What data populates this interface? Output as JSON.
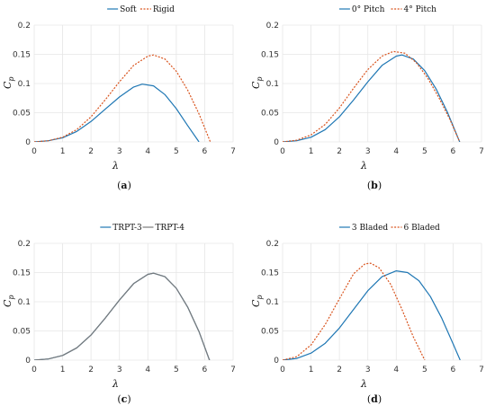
{
  "chart_data": [
    {
      "type": "line",
      "caption": "a",
      "xlabel": "λ",
      "ylabel_main": "C",
      "ylabel_sub": "p",
      "xlim": [
        0,
        7
      ],
      "ylim": [
        0,
        0.2
      ],
      "xticks": [
        "0",
        "1",
        "2",
        "3",
        "4",
        "5",
        "6",
        "7"
      ],
      "yticks": [
        "0",
        "0.05",
        "0.1",
        "0.15",
        "0.2"
      ],
      "grid": true,
      "legend": "top-center",
      "series": [
        {
          "name": "Soft",
          "color": "#1f77b4",
          "dash": "solid",
          "x": [
            0,
            0.5,
            1,
            1.5,
            2,
            2.5,
            3,
            3.5,
            3.8,
            4.2,
            4.6,
            5.0,
            5.4,
            5.8
          ],
          "y": [
            0,
            0.002,
            0.007,
            0.018,
            0.035,
            0.056,
            0.077,
            0.094,
            0.099,
            0.096,
            0.081,
            0.057,
            0.028,
            0.0
          ]
        },
        {
          "name": "Rigid",
          "color": "#d9541e",
          "dash": "dotted",
          "x": [
            0,
            0.5,
            1,
            1.5,
            2,
            2.5,
            3,
            3.5,
            4,
            4.2,
            4.6,
            5.0,
            5.4,
            5.8,
            6.2
          ],
          "y": [
            0,
            0.002,
            0.008,
            0.021,
            0.043,
            0.072,
            0.103,
            0.131,
            0.147,
            0.149,
            0.142,
            0.121,
            0.089,
            0.048,
            0.0
          ]
        }
      ]
    },
    {
      "type": "line",
      "caption": "b",
      "xlabel": "λ",
      "ylabel_main": "C",
      "ylabel_sub": "p",
      "xlim": [
        0,
        7
      ],
      "ylim": [
        0,
        0.2
      ],
      "xticks": [
        "0",
        "1",
        "2",
        "3",
        "4",
        "5",
        "6",
        "7"
      ],
      "yticks": [
        "0",
        "0.05",
        "0.1",
        "0.15",
        "0.2"
      ],
      "grid": true,
      "legend": "top-center",
      "series": [
        {
          "name": "0° Pitch",
          "color": "#1f77b4",
          "dash": "solid",
          "x": [
            0,
            0.5,
            1,
            1.5,
            2,
            2.5,
            3,
            3.5,
            4,
            4.2,
            4.6,
            5.0,
            5.4,
            5.8,
            6.25
          ],
          "y": [
            0,
            0.002,
            0.008,
            0.021,
            0.043,
            0.072,
            0.103,
            0.131,
            0.147,
            0.149,
            0.142,
            0.122,
            0.091,
            0.051,
            -0.002
          ]
        },
        {
          "name": "4° Pitch",
          "color": "#d9541e",
          "dash": "dotted",
          "x": [
            0,
            0.5,
            1,
            1.5,
            2,
            2.5,
            3,
            3.5,
            3.9,
            4.3,
            4.7,
            5.1,
            5.5,
            5.9,
            6.25
          ],
          "y": [
            0,
            0.003,
            0.012,
            0.03,
            0.058,
            0.092,
            0.124,
            0.147,
            0.155,
            0.152,
            0.136,
            0.11,
            0.076,
            0.037,
            -0.002
          ]
        }
      ]
    },
    {
      "type": "line",
      "caption": "c",
      "xlabel": "λ",
      "ylabel_main": "C",
      "ylabel_sub": "p",
      "xlim": [
        0,
        7
      ],
      "ylim": [
        0,
        0.2
      ],
      "xticks": [
        "0",
        "1",
        "2",
        "3",
        "4",
        "5",
        "6",
        "7"
      ],
      "yticks": [
        "0",
        "0.05",
        "0.1",
        "0.15",
        "0.2"
      ],
      "grid": true,
      "legend": "top-center",
      "series": [
        {
          "name": "TRPT-3",
          "color": "#1f77b4",
          "dash": "solid",
          "x": [
            0,
            0.5,
            1,
            1.5,
            2,
            2.5,
            3,
            3.5,
            4,
            4.2,
            4.6,
            5.0,
            5.4,
            5.8,
            6.2
          ],
          "y": [
            0,
            0.002,
            0.008,
            0.021,
            0.043,
            0.072,
            0.103,
            0.131,
            0.147,
            0.149,
            0.143,
            0.123,
            0.091,
            0.049,
            -0.004
          ]
        },
        {
          "name": "TRPT-4",
          "color": "#7a7a7a",
          "dash": "solid",
          "x": [
            0,
            0.5,
            1,
            1.5,
            2,
            2.5,
            3,
            3.5,
            4,
            4.2,
            4.6,
            5.0,
            5.4,
            5.8,
            6.2
          ],
          "y": [
            0,
            0.002,
            0.008,
            0.021,
            0.043,
            0.072,
            0.103,
            0.131,
            0.147,
            0.149,
            0.143,
            0.123,
            0.091,
            0.049,
            -0.004
          ]
        }
      ]
    },
    {
      "type": "line",
      "caption": "d",
      "xlabel": "λ",
      "ylabel_main": "C",
      "ylabel_sub": "p",
      "xlim": [
        0,
        7
      ],
      "ylim": [
        0,
        0.2
      ],
      "xticks": [
        "0",
        "1",
        "2",
        "3",
        "4",
        "5",
        "6",
        "7"
      ],
      "yticks": [
        "0",
        "0.05",
        "0.1",
        "0.15",
        "0.2"
      ],
      "grid": true,
      "legend": "top-center",
      "series": [
        {
          "name": "3 Bladed",
          "color": "#1f77b4",
          "dash": "solid",
          "x": [
            0,
            0.5,
            1,
            1.5,
            2,
            2.5,
            3,
            3.5,
            4,
            4.4,
            4.8,
            5.2,
            5.6,
            6.0,
            6.25
          ],
          "y": [
            0,
            0.003,
            0.012,
            0.029,
            0.055,
            0.087,
            0.119,
            0.143,
            0.153,
            0.15,
            0.136,
            0.109,
            0.072,
            0.028,
            0.0
          ]
        },
        {
          "name": "6 Bladed",
          "color": "#d9541e",
          "dash": "dotted",
          "x": [
            0,
            0.5,
            1,
            1.5,
            2,
            2.5,
            2.9,
            3.1,
            3.4,
            3.8,
            4.2,
            4.6,
            5.0
          ],
          "y": [
            0,
            0.006,
            0.026,
            0.061,
            0.105,
            0.148,
            0.165,
            0.166,
            0.158,
            0.13,
            0.087,
            0.04,
            0.0
          ]
        }
      ]
    }
  ]
}
